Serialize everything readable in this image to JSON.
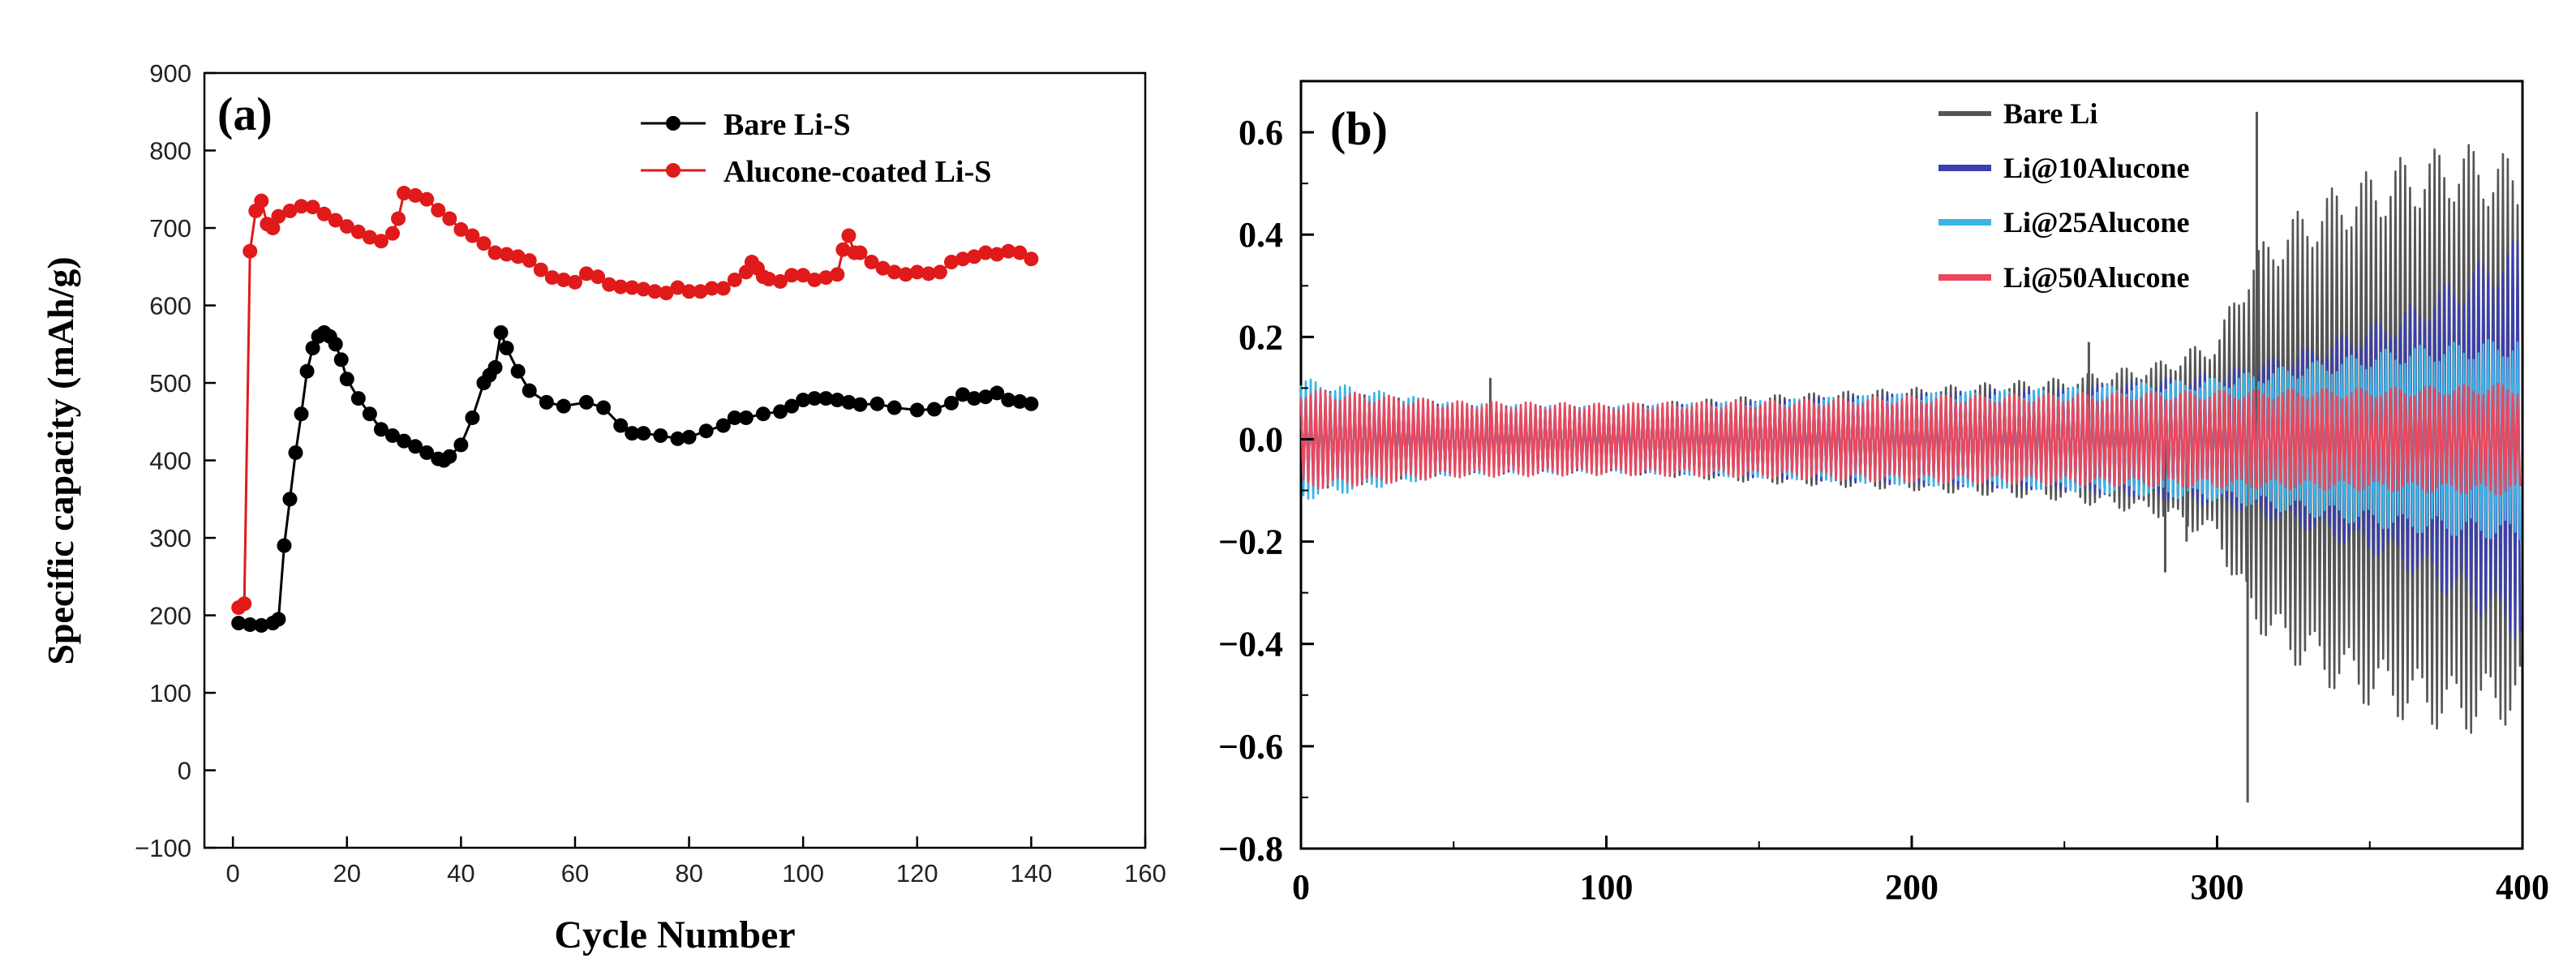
{
  "chart_data": [
    {
      "type": "line",
      "panel_label": "(a)",
      "title": "",
      "xlabel": "Cycle Number",
      "ylabel": "Specific capacity (mAh/g)",
      "xlim": [
        -5,
        160
      ],
      "ylim": [
        -100,
        900
      ],
      "xticks": [
        "0",
        "20",
        "40",
        "60",
        "80",
        "100",
        "120",
        "140",
        "160"
      ],
      "yticks": [
        "−100",
        "0",
        "100",
        "200",
        "300",
        "400",
        "500",
        "600",
        "700",
        "800",
        "900"
      ],
      "legend_position": "top-right",
      "series": [
        {
          "name": "Bare Li-S",
          "color": "#000000",
          "x": [
            1,
            3,
            5,
            7,
            8,
            9,
            10,
            11,
            12,
            13,
            14,
            15,
            16,
            17,
            18,
            19,
            20,
            22,
            24,
            26,
            28,
            30,
            32,
            34,
            36,
            37,
            38,
            40,
            42,
            44,
            45,
            46,
            47,
            48,
            50,
            52,
            55,
            58,
            62,
            65,
            68,
            70,
            72,
            75,
            78,
            80,
            83,
            86,
            88,
            90,
            93,
            96,
            98,
            100,
            102,
            104,
            106,
            108,
            110,
            113,
            116,
            120,
            123,
            126,
            128,
            130,
            132,
            134,
            136,
            138,
            140
          ],
          "values": [
            190,
            188,
            187,
            190,
            195,
            290,
            350,
            410,
            460,
            515,
            545,
            560,
            565,
            560,
            550,
            530,
            505,
            480,
            460,
            440,
            432,
            425,
            418,
            410,
            402,
            400,
            405,
            420,
            455,
            500,
            510,
            520,
            565,
            545,
            515,
            490,
            475,
            470,
            475,
            468,
            445,
            435,
            435,
            432,
            428,
            430,
            438,
            445,
            455,
            455,
            460,
            463,
            470,
            478,
            480,
            480,
            478,
            475,
            472,
            473,
            468,
            465,
            466,
            474,
            485,
            480,
            482,
            487,
            478,
            476,
            473
          ]
        },
        {
          "name": "Alucone-coated Li-S",
          "color": "#e01a1a",
          "x": [
            1,
            2,
            3,
            4,
            5,
            6,
            7,
            8,
            10,
            12,
            14,
            16,
            18,
            20,
            22,
            24,
            26,
            28,
            29,
            30,
            32,
            34,
            36,
            38,
            40,
            42,
            44,
            46,
            48,
            50,
            52,
            54,
            56,
            58,
            60,
            62,
            64,
            66,
            68,
            70,
            72,
            74,
            76,
            78,
            80,
            82,
            84,
            86,
            88,
            90,
            91,
            92,
            93,
            94,
            96,
            98,
            100,
            102,
            104,
            106,
            107,
            108,
            109,
            110,
            112,
            114,
            116,
            118,
            120,
            122,
            124,
            126,
            128,
            130,
            132,
            134,
            136,
            138,
            140
          ],
          "values": [
            210,
            215,
            670,
            722,
            735,
            705,
            700,
            715,
            722,
            728,
            727,
            718,
            710,
            702,
            695,
            688,
            683,
            693,
            712,
            745,
            742,
            737,
            723,
            712,
            698,
            690,
            680,
            668,
            666,
            663,
            658,
            646,
            636,
            633,
            630,
            641,
            637,
            627,
            624,
            623,
            621,
            618,
            616,
            623,
            618,
            618,
            622,
            622,
            633,
            643,
            656,
            648,
            637,
            634,
            631,
            639,
            639,
            633,
            636,
            640,
            672,
            690,
            668,
            668,
            656,
            648,
            643,
            640,
            643,
            641,
            643,
            656,
            660,
            663,
            668,
            666,
            670,
            668,
            660
          ]
        }
      ]
    },
    {
      "type": "line",
      "panel_label": "(b)",
      "title": "",
      "xlabel": "",
      "ylabel": "",
      "xlim": [
        0,
        400
      ],
      "ylim": [
        -0.8,
        0.7
      ],
      "xticks": [
        "0",
        "100",
        "200",
        "300",
        "400"
      ],
      "yticks": [
        "−0.8",
        "−0.6",
        "−0.4",
        "−0.2",
        "0.0",
        "0.2",
        "0.4",
        "0.6"
      ],
      "legend_position": "top-center",
      "series": [
        {
          "name": "Bare Li",
          "color": "#555555",
          "x": [
            0,
            50,
            100,
            150,
            200,
            250,
            280,
            300,
            310,
            320,
            340,
            360,
            380,
            400
          ],
          "amplitude": [
            0.1,
            0.07,
            0.065,
            0.085,
            0.1,
            0.12,
            0.15,
            0.2,
            0.35,
            0.42,
            0.5,
            0.55,
            0.58,
            0.55
          ],
          "spikes_x": [
            62,
            258,
            283,
            290,
            310,
            313
          ],
          "spikes_y": [
            0.12,
            0.19,
            -0.26,
            -0.2,
            -0.71,
            0.64
          ]
        },
        {
          "name": "Li@10Alucone",
          "color": "#3b3fb0",
          "x": [
            0,
            50,
            100,
            150,
            200,
            250,
            300,
            330,
            360,
            400
          ],
          "amplitude": [
            0.09,
            0.065,
            0.06,
            0.075,
            0.09,
            0.1,
            0.13,
            0.18,
            0.25,
            0.4
          ]
        },
        {
          "name": "Li@25Alucone",
          "color": "#3ab4e8",
          "x": [
            0,
            50,
            100,
            150,
            200,
            250,
            300,
            330,
            360,
            400
          ],
          "amplitude": [
            0.12,
            0.07,
            0.065,
            0.075,
            0.09,
            0.1,
            0.12,
            0.15,
            0.18,
            0.2
          ]
        },
        {
          "name": "Li@50Alucone",
          "color": "#e8485e",
          "x": [
            0,
            50,
            100,
            150,
            200,
            250,
            300,
            350,
            400
          ],
          "amplitude": [
            0.1,
            0.075,
            0.07,
            0.075,
            0.085,
            0.09,
            0.095,
            0.1,
            0.11
          ]
        }
      ]
    }
  ]
}
